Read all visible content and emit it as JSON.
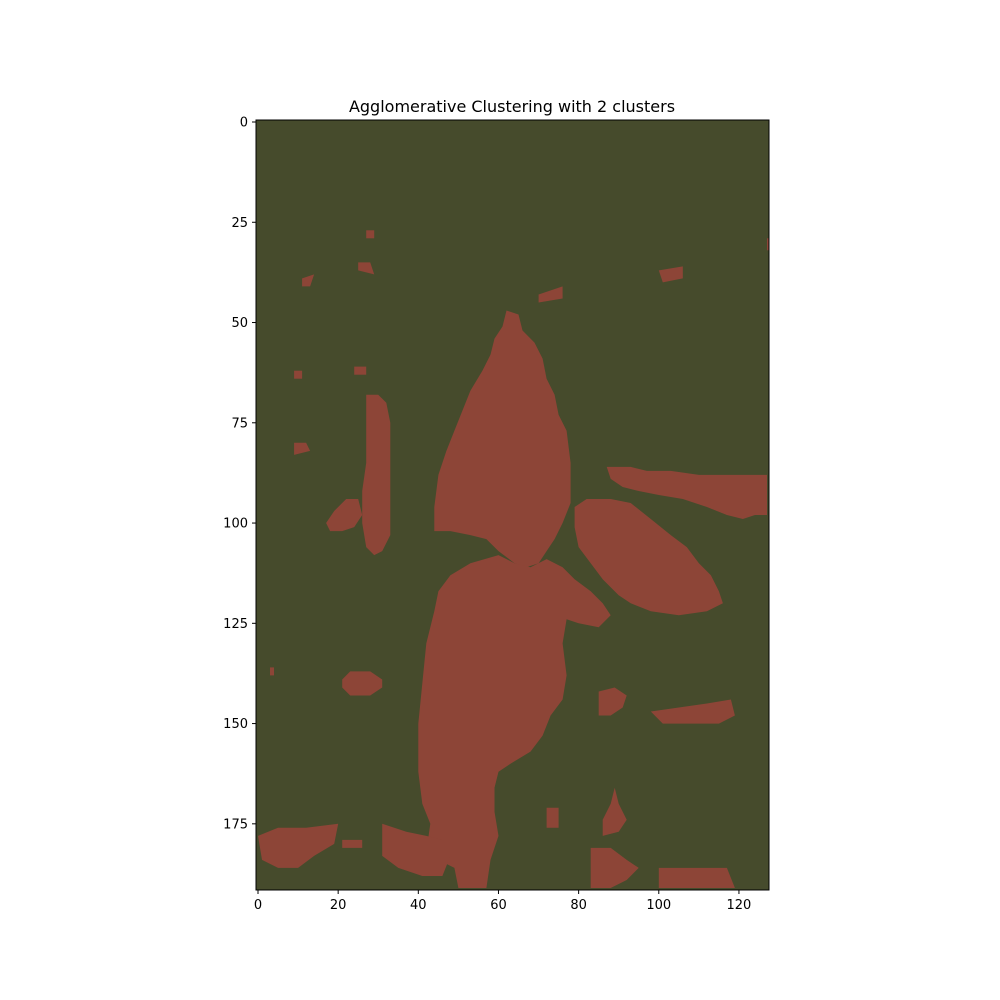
{
  "chart_data": {
    "type": "heatmap",
    "title": "Agglomerative Clustering with 2 clusters",
    "xlabel": "",
    "ylabel": "",
    "image_width": 128,
    "image_height": 192,
    "xlim": [
      -0.5,
      127.5
    ],
    "ylim": [
      191.5,
      -0.5
    ],
    "xticks": [
      0,
      20,
      40,
      60,
      80,
      100,
      120
    ],
    "yticks": [
      0,
      25,
      50,
      75,
      100,
      125,
      150,
      175
    ],
    "grid": false,
    "legend": "none",
    "colors": {
      "background_cluster": "#464b2c",
      "object_cluster": "#8d4537"
    },
    "regions": [
      {
        "name": "central-upper-blob",
        "points": [
          [
            62,
            47
          ],
          [
            65,
            48
          ],
          [
            66,
            52
          ],
          [
            69,
            55
          ],
          [
            71,
            59
          ],
          [
            72,
            64
          ],
          [
            74,
            68
          ],
          [
            75,
            73
          ],
          [
            77,
            77
          ],
          [
            78,
            85
          ],
          [
            78,
            95
          ],
          [
            76,
            100
          ],
          [
            74,
            104
          ],
          [
            72,
            107
          ],
          [
            70,
            110
          ],
          [
            67,
            111
          ],
          [
            64,
            110
          ],
          [
            60,
            107
          ],
          [
            57,
            104
          ],
          [
            53,
            103
          ],
          [
            48,
            102
          ],
          [
            44,
            102
          ],
          [
            44,
            96
          ],
          [
            45,
            88
          ],
          [
            47,
            82
          ],
          [
            49,
            77
          ],
          [
            51,
            72
          ],
          [
            53,
            67
          ],
          [
            56,
            62
          ],
          [
            58,
            58
          ],
          [
            59,
            54
          ],
          [
            61,
            51
          ]
        ]
      },
      {
        "name": "central-lower-blob",
        "points": [
          [
            60,
            108
          ],
          [
            64,
            110
          ],
          [
            68,
            111
          ],
          [
            72,
            109
          ],
          [
            76,
            111
          ],
          [
            79,
            114
          ],
          [
            83,
            117
          ],
          [
            86,
            120
          ],
          [
            88,
            123
          ],
          [
            85,
            126
          ],
          [
            80,
            125
          ],
          [
            77,
            124
          ],
          [
            76,
            130
          ],
          [
            77,
            138
          ],
          [
            76,
            144
          ],
          [
            73,
            148
          ],
          [
            71,
            153
          ],
          [
            68,
            157
          ],
          [
            63,
            160
          ],
          [
            60,
            162
          ],
          [
            59,
            166
          ],
          [
            59,
            172
          ],
          [
            60,
            178
          ],
          [
            58,
            184
          ],
          [
            57,
            191
          ],
          [
            50,
            191
          ],
          [
            49,
            186
          ],
          [
            45,
            184
          ],
          [
            42,
            182
          ],
          [
            43,
            175
          ],
          [
            41,
            170
          ],
          [
            40,
            162
          ],
          [
            40,
            150
          ],
          [
            41,
            140
          ],
          [
            42,
            130
          ],
          [
            44,
            122
          ],
          [
            45,
            117
          ],
          [
            48,
            113
          ],
          [
            53,
            110
          ]
        ]
      },
      {
        "name": "right-band",
        "points": [
          [
            87,
            86
          ],
          [
            93,
            86
          ],
          [
            97,
            87
          ],
          [
            103,
            87
          ],
          [
            110,
            88
          ],
          [
            127,
            88
          ],
          [
            127,
            98
          ],
          [
            124,
            98
          ],
          [
            121,
            99
          ],
          [
            117,
            98
          ],
          [
            112,
            96
          ],
          [
            106,
            94
          ],
          [
            100,
            93
          ],
          [
            95,
            92
          ],
          [
            91,
            91
          ],
          [
            88,
            89
          ]
        ]
      },
      {
        "name": "right-diagonal-blob",
        "points": [
          [
            82,
            94
          ],
          [
            88,
            94
          ],
          [
            93,
            95
          ],
          [
            98,
            99
          ],
          [
            103,
            103
          ],
          [
            107,
            106
          ],
          [
            110,
            110
          ],
          [
            113,
            113
          ],
          [
            115,
            117
          ],
          [
            116,
            120
          ],
          [
            112,
            122
          ],
          [
            105,
            123
          ],
          [
            98,
            122
          ],
          [
            93,
            120
          ],
          [
            90,
            118
          ],
          [
            86,
            114
          ],
          [
            83,
            110
          ],
          [
            80,
            106
          ],
          [
            79,
            101
          ],
          [
            79,
            96
          ]
        ]
      },
      {
        "name": "left-vertical-strip",
        "points": [
          [
            27,
            68
          ],
          [
            30,
            68
          ],
          [
            32,
            70
          ],
          [
            33,
            75
          ],
          [
            33,
            85
          ],
          [
            33,
            95
          ],
          [
            33,
            103
          ],
          [
            31,
            107
          ],
          [
            29,
            108
          ],
          [
            27,
            106
          ],
          [
            26,
            100
          ],
          [
            26,
            92
          ],
          [
            27,
            85
          ],
          [
            27,
            75
          ]
        ]
      },
      {
        "name": "left-wing",
        "points": [
          [
            22,
            94
          ],
          [
            25,
            94
          ],
          [
            26,
            98
          ],
          [
            24,
            101
          ],
          [
            21,
            102
          ],
          [
            18,
            102
          ],
          [
            17,
            100
          ],
          [
            19,
            97
          ]
        ]
      },
      {
        "name": "left-small-oval",
        "points": [
          [
            23,
            137
          ],
          [
            28,
            137
          ],
          [
            31,
            139
          ],
          [
            31,
            141
          ],
          [
            28,
            143
          ],
          [
            23,
            143
          ],
          [
            21,
            141
          ],
          [
            21,
            139
          ]
        ]
      },
      {
        "name": "bottom-left-blob",
        "points": [
          [
            0,
            178
          ],
          [
            5,
            176
          ],
          [
            12,
            176
          ],
          [
            20,
            175
          ],
          [
            19,
            180
          ],
          [
            14,
            183
          ],
          [
            10,
            186
          ],
          [
            5,
            186
          ],
          [
            1,
            184
          ]
        ]
      },
      {
        "name": "bottom-left-center-blob",
        "points": [
          [
            31,
            175
          ],
          [
            37,
            177
          ],
          [
            42,
            178
          ],
          [
            46,
            179
          ],
          [
            48,
            183
          ],
          [
            46,
            188
          ],
          [
            41,
            188
          ],
          [
            35,
            186
          ],
          [
            31,
            183
          ]
        ]
      },
      {
        "name": "bottom-right-block",
        "points": [
          [
            100,
            186
          ],
          [
            117,
            186
          ],
          [
            119,
            191
          ],
          [
            100,
            191
          ]
        ]
      },
      {
        "name": "bottom-right-center-blob",
        "points": [
          [
            83,
            181
          ],
          [
            88,
            181
          ],
          [
            92,
            184
          ],
          [
            95,
            186
          ],
          [
            92,
            189
          ],
          [
            88,
            191
          ],
          [
            83,
            191
          ]
        ]
      },
      {
        "name": "right-small-triangle",
        "points": [
          [
            86,
            174
          ],
          [
            88,
            170
          ],
          [
            89,
            166
          ],
          [
            90,
            170
          ],
          [
            92,
            174
          ],
          [
            90,
            177
          ],
          [
            86,
            178
          ]
        ]
      },
      {
        "name": "right-lower-strip",
        "points": [
          [
            98,
            147
          ],
          [
            105,
            146
          ],
          [
            112,
            145
          ],
          [
            118,
            144
          ],
          [
            119,
            148
          ],
          [
            115,
            150
          ],
          [
            108,
            150
          ],
          [
            101,
            150
          ]
        ]
      },
      {
        "name": "right-small-blob",
        "points": [
          [
            85,
            142
          ],
          [
            89,
            141
          ],
          [
            92,
            143
          ],
          [
            91,
            146
          ],
          [
            88,
            148
          ],
          [
            85,
            148
          ]
        ]
      },
      {
        "name": "top-right-speck",
        "points": [
          [
            100,
            37
          ],
          [
            106,
            36
          ],
          [
            106,
            39
          ],
          [
            101,
            40
          ]
        ]
      },
      {
        "name": "top-center-speck",
        "points": [
          [
            70,
            43
          ],
          [
            76,
            41
          ],
          [
            76,
            44
          ],
          [
            70,
            45
          ]
        ]
      },
      {
        "name": "top-left-speck-1",
        "points": [
          [
            25,
            35
          ],
          [
            28,
            35
          ],
          [
            29,
            38
          ],
          [
            25,
            37
          ]
        ]
      },
      {
        "name": "top-left-speck-2",
        "points": [
          [
            27,
            27
          ],
          [
            29,
            27
          ],
          [
            29,
            29
          ],
          [
            27,
            29
          ]
        ]
      },
      {
        "name": "left-speck-1",
        "points": [
          [
            9,
            80
          ],
          [
            12,
            80
          ],
          [
            13,
            82
          ],
          [
            9,
            83
          ]
        ]
      },
      {
        "name": "left-speck-2",
        "points": [
          [
            24,
            61
          ],
          [
            27,
            61
          ],
          [
            27,
            63
          ],
          [
            24,
            63
          ]
        ]
      },
      {
        "name": "left-speck-3",
        "points": [
          [
            9,
            62
          ],
          [
            11,
            62
          ],
          [
            11,
            64
          ],
          [
            9,
            64
          ]
        ]
      },
      {
        "name": "left-speck-4",
        "points": [
          [
            11,
            39
          ],
          [
            14,
            38
          ],
          [
            13,
            41
          ],
          [
            11,
            41
          ]
        ]
      },
      {
        "name": "left-speck-5",
        "points": [
          [
            3,
            136
          ],
          [
            4,
            136
          ],
          [
            4,
            138
          ],
          [
            3,
            138
          ]
        ]
      },
      {
        "name": "bottom-left-speck",
        "points": [
          [
            21,
            179
          ],
          [
            26,
            179
          ],
          [
            26,
            181
          ],
          [
            21,
            181
          ]
        ]
      },
      {
        "name": "lower-speck",
        "points": [
          [
            72,
            171
          ],
          [
            75,
            171
          ],
          [
            75,
            176
          ],
          [
            72,
            176
          ]
        ]
      },
      {
        "name": "edge-speck",
        "points": [
          [
            127,
            29
          ],
          [
            127.5,
            29
          ],
          [
            127.5,
            32
          ],
          [
            127,
            32
          ]
        ]
      }
    ]
  }
}
